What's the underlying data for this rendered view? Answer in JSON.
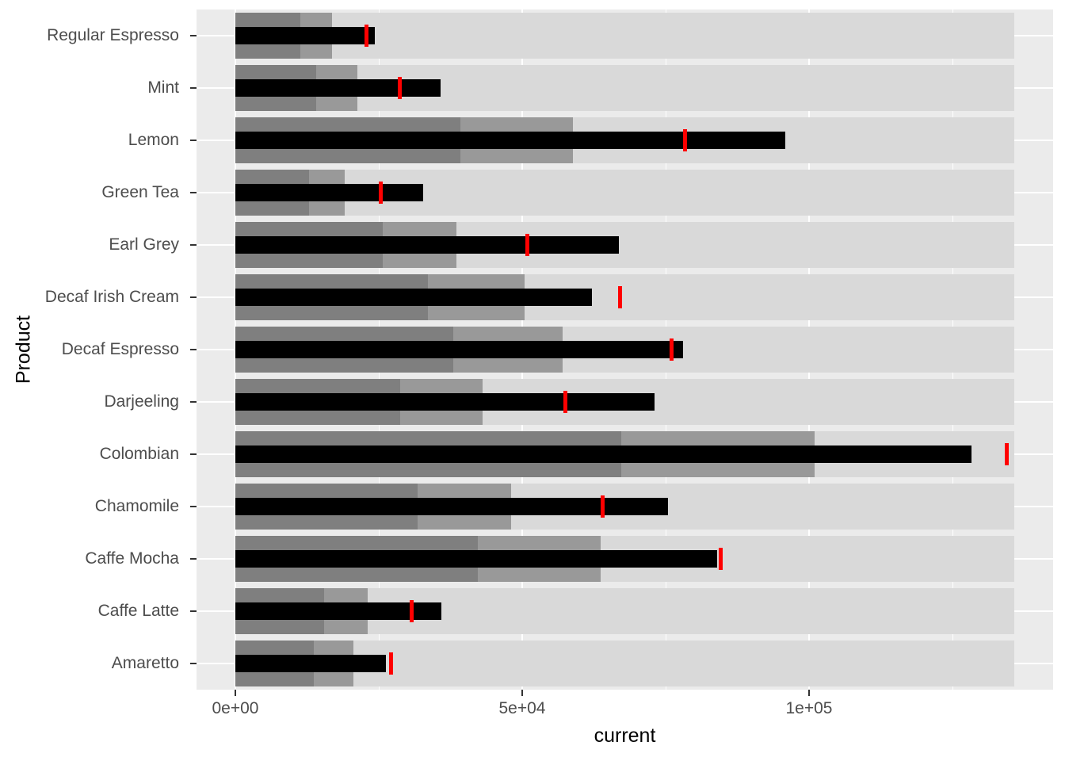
{
  "chart_data": {
    "type": "bullet",
    "orientation": "horizontal",
    "xlabel": "current",
    "ylabel": "Product",
    "xlim": [
      0,
      142500
    ],
    "x_ticks": [
      {
        "value": 0,
        "label": "0e+00"
      },
      {
        "value": 50000,
        "label": "5e+04"
      },
      {
        "value": 100000,
        "label": "1e+05"
      }
    ],
    "x_minor_gridlines": [
      25000,
      75000,
      125000
    ],
    "grid": true,
    "legend": "none",
    "rows_top_to_bottom": [
      {
        "product": "Regular Espresso",
        "range_low": 11300,
        "range_mid": 16900,
        "range_high": 135800,
        "current": 24300,
        "target": 22800
      },
      {
        "product": "Mint",
        "range_low": 14100,
        "range_mid": 21300,
        "range_high": 135800,
        "current": 35800,
        "target": 28600
      },
      {
        "product": "Lemon",
        "range_low": 39200,
        "range_mid": 58900,
        "range_high": 135800,
        "current": 95800,
        "target": 78400
      },
      {
        "product": "Green Tea",
        "range_low": 12800,
        "range_mid": 19100,
        "range_high": 135800,
        "current": 32700,
        "target": 25400
      },
      {
        "product": "Earl Grey",
        "range_low": 25700,
        "range_mid": 38500,
        "range_high": 135800,
        "current": 66800,
        "target": 50900
      },
      {
        "product": "Decaf Irish Cream",
        "range_low": 33600,
        "range_mid": 50400,
        "range_high": 135800,
        "current": 62200,
        "target": 67100
      },
      {
        "product": "Decaf Espresso",
        "range_low": 38000,
        "range_mid": 57100,
        "range_high": 135800,
        "current": 78000,
        "target": 76100
      },
      {
        "product": "Darjeeling",
        "range_low": 28700,
        "range_mid": 43100,
        "range_high": 135800,
        "current": 73000,
        "target": 57500
      },
      {
        "product": "Colombian",
        "range_low": 67300,
        "range_mid": 100900,
        "range_high": 135800,
        "current": 128300,
        "target": 134400
      },
      {
        "product": "Chamomile",
        "range_low": 31800,
        "range_mid": 48100,
        "range_high": 135800,
        "current": 75400,
        "target": 64000
      },
      {
        "product": "Caffe Mocha",
        "range_low": 42300,
        "range_mid": 63700,
        "range_high": 135800,
        "current": 84000,
        "target": 84600
      },
      {
        "product": "Caffe Latte",
        "range_low": 15500,
        "range_mid": 23000,
        "range_high": 135800,
        "current": 35900,
        "target": 30800
      },
      {
        "product": "Amaretto",
        "range_low": 13700,
        "range_mid": 20600,
        "range_high": 135800,
        "current": 26200,
        "target": 27200
      }
    ],
    "colors": {
      "panel_background": "#EBEBEB",
      "gridline": "#FFFFFF",
      "range_high_band": "#D9D9D9",
      "range_mid_band": "#999999",
      "range_low_band": "#7F7F7F",
      "measure_bar": "#000000",
      "target_marker": "#FF0000",
      "axis_text": "#4D4D4D",
      "axis_title": "#000000",
      "tick_mark": "#333333"
    }
  }
}
